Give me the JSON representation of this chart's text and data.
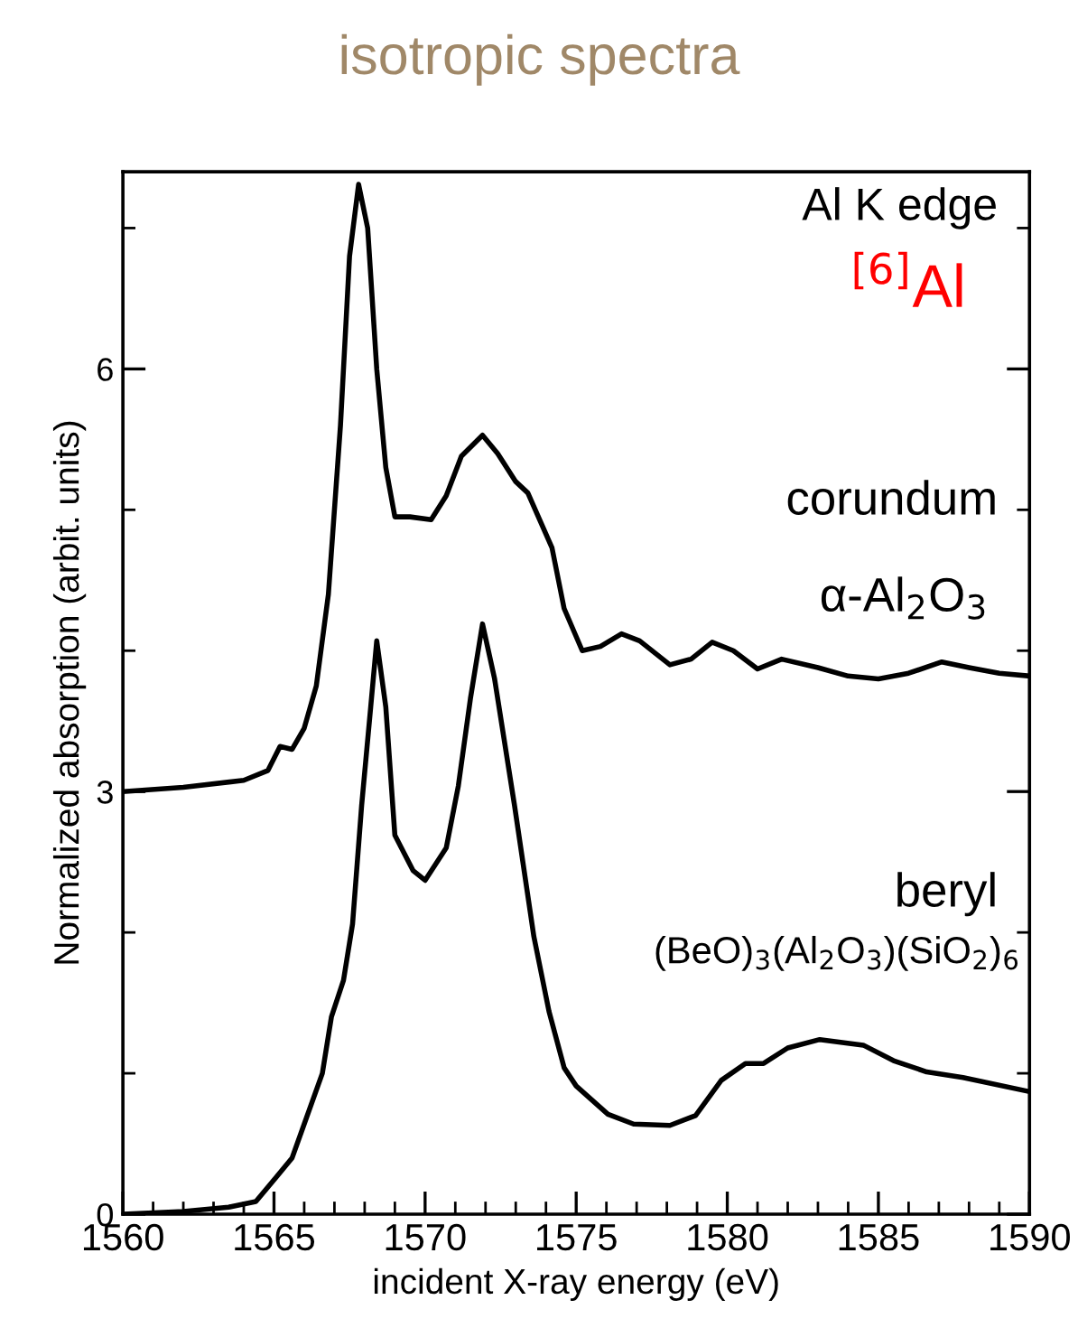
{
  "chart_data": {
    "type": "line",
    "title": "isotropic spectra",
    "xlabel": "incident X-ray energy (eV)",
    "ylabel": "Normalized absorption (arbit. units)",
    "xlim": [
      1560,
      1590
    ],
    "xticks": [
      1560,
      {
        "value": 1561,
        "label": null
      },
      {
        "value": 1562,
        "label": null
      },
      {
        "value": 1563,
        "label": null
      },
      {
        "value": 1564,
        "label": null
      },
      1565,
      {
        "value": 1566,
        "label": null
      },
      {
        "value": 1567,
        "label": null
      },
      {
        "value": 1568,
        "label": null
      },
      {
        "value": 1569,
        "label": null
      },
      1570,
      {
        "value": 1571,
        "label": null
      },
      {
        "value": 1572,
        "label": null
      },
      {
        "value": 1573,
        "label": null
      },
      {
        "value": 1574,
        "label": null
      },
      1575,
      {
        "value": 1576,
        "label": null
      },
      {
        "value": 1577,
        "label": null
      },
      {
        "value": 1578,
        "label": null
      },
      {
        "value": 1579,
        "label": null
      },
      1580,
      {
        "value": 1581,
        "label": null
      },
      {
        "value": 1582,
        "label": null
      },
      {
        "value": 1583,
        "label": null
      },
      {
        "value": 1584,
        "label": null
      },
      1585,
      {
        "value": 1586,
        "label": null
      },
      {
        "value": 1587,
        "label": null
      },
      {
        "value": 1588,
        "label": null
      },
      {
        "value": 1589,
        "label": null
      },
      1590
    ],
    "ylim": [
      0,
      7.4
    ],
    "yticks": [
      0,
      {
        "value": 1,
        "label": null
      },
      {
        "value": 2,
        "label": null
      },
      3,
      {
        "value": 4,
        "label": null
      },
      {
        "value": 5,
        "label": null
      },
      6,
      {
        "value": 7,
        "label": null
      }
    ],
    "annotations": [
      "Al K edge",
      "$^{[6]}$Al",
      "α-Al$_{2}$O$_{3}$",
      "(BeO)$_{3}$(Al$_{2}$O$_{3}$)(SiO$_{2}$)$_{6}$"
    ],
    "legend": "right",
    "grid": false,
    "marker": "none",
    "line_style": "solid",
    "series": [
      {
        "name": "corundum",
        "color": "#000000",
        "x": [
          1560,
          1562,
          1564,
          1564.8,
          1565.2,
          1565.6,
          1566.0,
          1566.4,
          1566.8,
          1567.2,
          1567.5,
          1567.8,
          1568.1,
          1568.4,
          1568.7,
          1569.0,
          1569.5,
          1570.2,
          1570.7,
          1571.2,
          1571.9,
          1572.4,
          1573.0,
          1573.4,
          1574.2,
          1574.6,
          1575.2,
          1575.8,
          1576.5,
          1577.1,
          1578.1,
          1578.8,
          1579.5,
          1580.2,
          1581.0,
          1581.8,
          1583.0,
          1584.0,
          1585.0,
          1586.0,
          1587.1,
          1588.0,
          1589.0,
          1590
        ],
        "values": [
          3.0,
          3.03,
          3.08,
          3.15,
          3.32,
          3.3,
          3.45,
          3.75,
          4.4,
          5.6,
          6.8,
          7.31,
          7.0,
          6.0,
          5.3,
          4.95,
          4.95,
          4.93,
          5.1,
          5.38,
          5.53,
          5.4,
          5.2,
          5.12,
          4.73,
          4.3,
          4.0,
          4.03,
          4.12,
          4.07,
          3.9,
          3.94,
          4.06,
          4.0,
          3.87,
          3.94,
          3.88,
          3.82,
          3.8,
          3.84,
          3.92,
          3.88,
          3.84,
          3.82
        ]
      },
      {
        "name": "beryl",
        "color": "#000000",
        "x": [
          1560,
          1562,
          1563.5,
          1564.4,
          1565.1,
          1565.6,
          1566.0,
          1566.6,
          1566.9,
          1567.3,
          1567.6,
          1567.9,
          1568.2,
          1568.4,
          1568.7,
          1569.0,
          1569.6,
          1570.0,
          1570.7,
          1571.1,
          1571.5,
          1571.9,
          1572.3,
          1572.96,
          1573.6,
          1574.1,
          1574.6,
          1575.0,
          1576.05,
          1576.9,
          1578.1,
          1578.95,
          1579.8,
          1580.6,
          1581.2,
          1582.0,
          1583.06,
          1584.5,
          1585.5,
          1586.6,
          1587.8,
          1590
        ],
        "values": [
          0.0,
          0.02,
          0.05,
          0.09,
          0.27,
          0.4,
          0.64,
          1.0,
          1.4,
          1.66,
          2.06,
          2.9,
          3.6,
          4.07,
          3.6,
          2.69,
          2.44,
          2.37,
          2.6,
          3.04,
          3.66,
          4.19,
          3.8,
          2.9,
          1.97,
          1.44,
          1.04,
          0.91,
          0.71,
          0.64,
          0.63,
          0.7,
          0.95,
          1.07,
          1.07,
          1.18,
          1.24,
          1.2,
          1.09,
          1.01,
          0.97,
          0.87
        ]
      }
    ]
  }
}
